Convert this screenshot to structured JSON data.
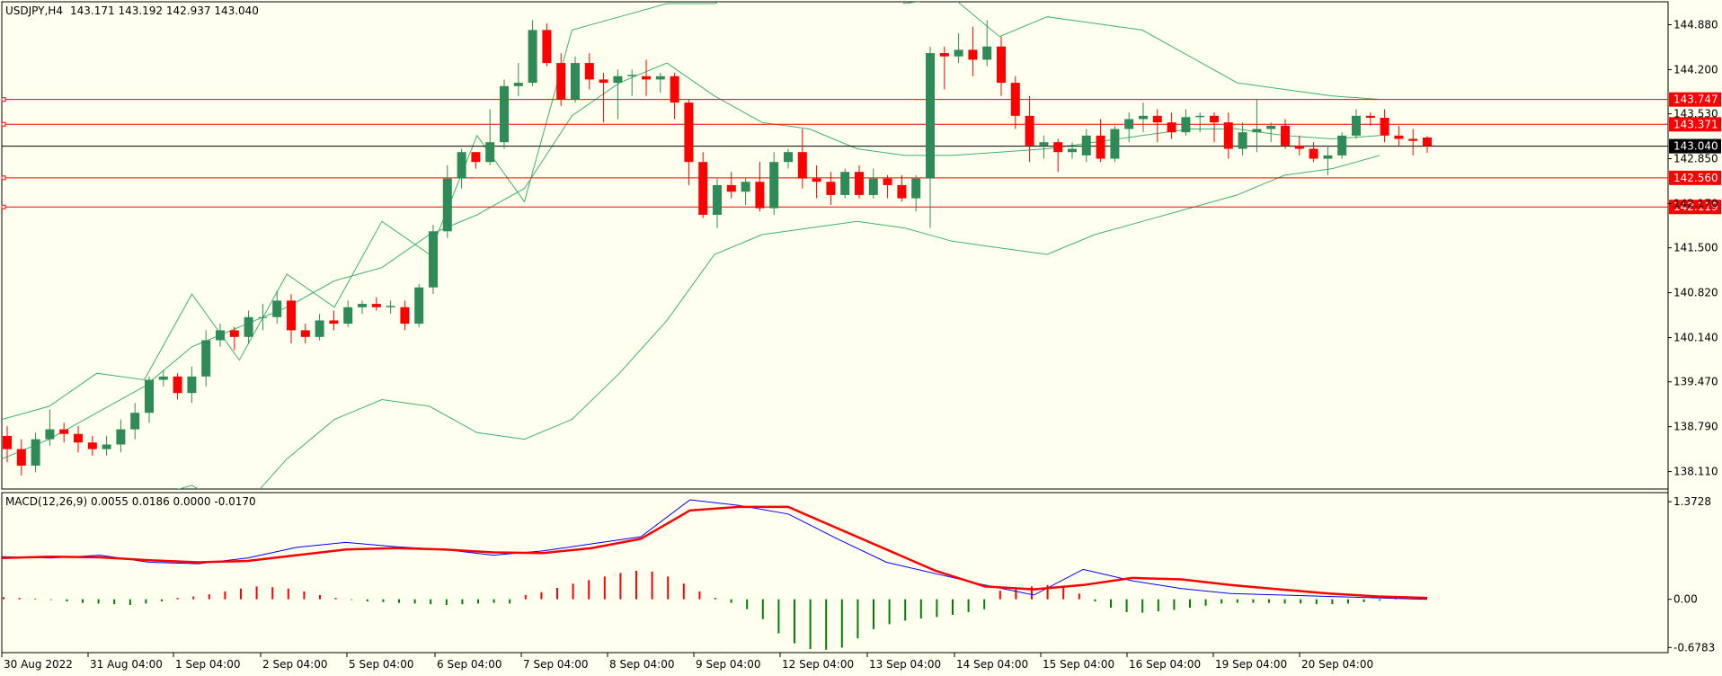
{
  "header": {
    "symbol": "USDJPY,H4",
    "ohlc": "143.171 143.192 142.937 143.040"
  },
  "colors": {
    "background": "#fffff0",
    "bull": "#2e8b57",
    "bear": "#ff0000",
    "bands": "#3cb371",
    "level_line": "#ff0000",
    "current_line": "#000000",
    "macd_line": "#0000ff",
    "signal_line": "#ff0000",
    "hist_up": "#ff0000",
    "hist_down": "#008000"
  },
  "chart_data": [
    {
      "type": "candlestick",
      "title": "USDJPY,H4",
      "ylim": [
        137.9,
        145.2
      ],
      "y_ticks": [
        "144.880",
        "144.200",
        "143.530",
        "142.850",
        "142.170",
        "141.500",
        "140.820",
        "140.140",
        "139.470",
        "138.790",
        "138.110"
      ],
      "x_ticks": [
        "30 Aug 2022",
        "31 Aug 04:00",
        "1 Sep 04:00",
        "2 Sep 04:00",
        "5 Sep 04:00",
        "6 Sep 04:00",
        "7 Sep 04:00",
        "8 Sep 04:00",
        "9 Sep 04:00",
        "12 Sep 04:00",
        "13 Sep 04:00",
        "14 Sep 04:00",
        "15 Sep 04:00",
        "16 Sep 04:00",
        "19 Sep 04:00",
        "20 Sep 04:00"
      ],
      "horizontal_levels": [
        {
          "value": 143.747,
          "label": "143.747"
        },
        {
          "value": 143.371,
          "label": "143.371"
        },
        {
          "value": 142.56,
          "label": "142.560"
        },
        {
          "value": 142.119,
          "label": "142.119"
        }
      ],
      "current_price": {
        "value": 143.04,
        "label": "143.040"
      },
      "candles": [
        [
          138.65,
          138.8,
          138.25,
          138.45
        ],
        [
          138.45,
          138.6,
          138.05,
          138.2
        ],
        [
          138.2,
          138.7,
          138.1,
          138.6
        ],
        [
          138.6,
          139.05,
          138.5,
          138.75
        ],
        [
          138.75,
          138.85,
          138.55,
          138.68
        ],
        [
          138.68,
          138.8,
          138.4,
          138.55
        ],
        [
          138.55,
          138.65,
          138.35,
          138.45
        ],
        [
          138.45,
          138.65,
          138.35,
          138.52
        ],
        [
          138.52,
          138.9,
          138.4,
          138.75
        ],
        [
          138.75,
          139.15,
          138.6,
          139.0
        ],
        [
          139.0,
          139.55,
          138.85,
          139.5
        ],
        [
          139.5,
          139.65,
          139.4,
          139.55
        ],
        [
          139.55,
          139.6,
          139.2,
          139.3
        ],
        [
          139.3,
          139.7,
          139.15,
          139.55
        ],
        [
          139.55,
          140.25,
          139.4,
          140.1
        ],
        [
          140.1,
          140.35,
          140.0,
          140.25
        ],
        [
          140.25,
          140.3,
          139.95,
          140.15
        ],
        [
          140.15,
          140.55,
          140.05,
          140.45
        ],
        [
          140.45,
          140.65,
          140.25,
          140.45
        ],
        [
          140.45,
          140.85,
          140.35,
          140.7
        ],
        [
          140.7,
          140.8,
          140.05,
          140.25
        ],
        [
          140.25,
          140.35,
          140.05,
          140.15
        ],
        [
          140.15,
          140.5,
          140.1,
          140.4
        ],
        [
          140.4,
          140.55,
          140.25,
          140.35
        ],
        [
          140.35,
          140.7,
          140.3,
          140.6
        ],
        [
          140.6,
          140.7,
          140.5,
          140.65
        ],
        [
          140.65,
          140.75,
          140.55,
          140.6
        ],
        [
          140.6,
          140.7,
          140.5,
          140.62
        ],
        [
          140.6,
          140.7,
          140.25,
          140.35
        ],
        [
          140.35,
          140.95,
          140.3,
          140.9
        ],
        [
          140.9,
          141.85,
          140.8,
          141.75
        ],
        [
          141.75,
          142.75,
          141.65,
          142.55
        ],
        [
          142.55,
          143.0,
          142.4,
          142.95
        ],
        [
          142.95,
          142.95,
          142.7,
          142.8
        ],
        [
          142.8,
          143.6,
          142.75,
          143.1
        ],
        [
          143.1,
          144.05,
          143.0,
          143.95
        ],
        [
          143.95,
          144.3,
          143.8,
          144.0
        ],
        [
          144.0,
          144.95,
          143.95,
          144.8
        ],
        [
          144.8,
          144.9,
          144.25,
          144.3
        ],
        [
          144.3,
          144.45,
          143.65,
          143.75
        ],
        [
          143.75,
          144.4,
          143.7,
          144.3
        ],
        [
          144.3,
          144.45,
          143.9,
          144.05
        ],
        [
          144.05,
          144.15,
          143.4,
          144.0
        ],
        [
          144.0,
          144.2,
          143.45,
          144.1
        ],
        [
          144.1,
          144.2,
          143.8,
          144.12
        ],
        [
          144.1,
          144.35,
          143.8,
          144.05
        ],
        [
          144.05,
          144.15,
          143.85,
          144.1
        ],
        [
          144.1,
          144.15,
          143.45,
          143.7
        ],
        [
          143.7,
          143.75,
          142.45,
          142.8
        ],
        [
          142.8,
          142.95,
          141.95,
          142.0
        ],
        [
          142.0,
          142.55,
          141.8,
          142.45
        ],
        [
          142.45,
          142.65,
          142.25,
          142.35
        ],
        [
          142.35,
          142.55,
          142.15,
          142.5
        ],
        [
          142.5,
          142.8,
          142.05,
          142.1
        ],
        [
          142.1,
          142.95,
          142.0,
          142.8
        ],
        [
          142.8,
          143.0,
          142.7,
          142.95
        ],
        [
          142.95,
          143.3,
          142.4,
          142.55
        ],
        [
          142.55,
          142.75,
          142.25,
          142.5
        ],
        [
          142.5,
          142.65,
          142.15,
          142.3
        ],
        [
          142.3,
          142.7,
          142.25,
          142.65
        ],
        [
          142.65,
          142.75,
          142.25,
          142.3
        ],
        [
          142.3,
          142.7,
          142.25,
          142.55
        ],
        [
          142.55,
          142.6,
          142.25,
          142.45
        ],
        [
          142.45,
          142.6,
          142.2,
          142.25
        ],
        [
          142.25,
          142.6,
          142.05,
          142.55
        ],
        [
          142.55,
          144.55,
          141.8,
          144.45
        ],
        [
          144.45,
          144.55,
          143.9,
          144.4
        ],
        [
          144.4,
          144.75,
          144.3,
          144.5
        ],
        [
          144.5,
          144.85,
          144.1,
          144.35
        ],
        [
          144.35,
          144.95,
          144.25,
          144.55
        ],
        [
          144.55,
          144.7,
          143.8,
          144.0
        ],
        [
          144.0,
          144.1,
          143.3,
          143.5
        ],
        [
          143.5,
          143.8,
          142.8,
          143.05
        ],
        [
          143.05,
          143.2,
          142.85,
          143.1
        ],
        [
          143.1,
          143.15,
          142.65,
          142.95
        ],
        [
          142.95,
          143.1,
          142.85,
          143.0
        ],
        [
          142.9,
          143.3,
          142.8,
          143.2
        ],
        [
          143.2,
          143.45,
          142.8,
          142.85
        ],
        [
          142.85,
          143.35,
          142.8,
          143.3
        ],
        [
          143.3,
          143.55,
          143.1,
          143.45
        ],
        [
          143.45,
          143.7,
          143.25,
          143.5
        ],
        [
          143.5,
          143.6,
          143.1,
          143.4
        ],
        [
          143.4,
          143.55,
          143.15,
          143.25
        ],
        [
          143.25,
          143.6,
          143.2,
          143.48
        ],
        [
          143.48,
          143.55,
          143.25,
          143.5
        ],
        [
          143.5,
          143.55,
          143.1,
          143.4
        ],
        [
          143.4,
          143.55,
          142.85,
          143.0
        ],
        [
          143.0,
          143.4,
          142.9,
          143.25
        ],
        [
          143.25,
          143.75,
          142.95,
          143.3
        ],
        [
          143.3,
          143.4,
          143.1,
          143.35
        ],
        [
          143.35,
          143.45,
          143.0,
          143.05
        ],
        [
          143.05,
          143.2,
          142.9,
          143.0
        ],
        [
          143.0,
          143.1,
          142.8,
          142.85
        ],
        [
          142.85,
          143.05,
          142.6,
          142.9
        ],
        [
          142.9,
          143.25,
          142.85,
          143.2
        ],
        [
          143.2,
          143.6,
          143.15,
          143.5
        ],
        [
          143.5,
          143.55,
          143.35,
          143.47
        ],
        [
          143.47,
          143.6,
          143.1,
          143.2
        ],
        [
          143.2,
          143.35,
          143.05,
          143.15
        ],
        [
          143.15,
          143.3,
          142.9,
          143.12
        ],
        [
          143.171,
          143.192,
          142.937,
          143.04
        ]
      ],
      "bollinger": {
        "upper": [
          [
            138.9,
            139.1
          ],
          [
            139.6,
            139.5
          ],
          [
            140.8,
            139.8
          ],
          [
            141.1,
            140.6
          ],
          [
            141.9,
            141.4
          ],
          [
            143.2,
            142.2
          ],
          [
            144.8,
            145.0
          ],
          [
            145.2,
            145.2
          ],
          [
            145.5,
            145.8
          ],
          [
            145.7,
            145.2
          ],
          [
            145.3,
            144.7
          ],
          [
            145.0,
            144.9
          ],
          [
            144.8,
            144.4
          ],
          [
            144.0,
            143.9
          ],
          [
            143.8,
            143.75
          ]
        ],
        "middle": [
          [
            138.3,
            138.6
          ],
          [
            139.0,
            139.4
          ],
          [
            140.0,
            140.3
          ],
          [
            140.6,
            141.0
          ],
          [
            141.2,
            141.7
          ],
          [
            142.0,
            142.4
          ],
          [
            143.5,
            144.0
          ],
          [
            144.3,
            143.8
          ],
          [
            143.4,
            143.3
          ],
          [
            143.0,
            142.9
          ],
          [
            142.9,
            142.95
          ],
          [
            143.0,
            143.1
          ],
          [
            143.2,
            143.3
          ],
          [
            143.3,
            143.2
          ],
          [
            143.15,
            143.2
          ]
        ],
        "lower": [
          [
            137.4,
            137.6
          ],
          [
            137.8,
            137.7
          ],
          [
            137.9,
            137.5
          ],
          [
            138.3,
            138.9
          ],
          [
            139.2,
            139.1
          ],
          [
            138.7,
            138.6
          ],
          [
            138.9,
            139.6
          ],
          [
            140.4,
            141.4
          ],
          [
            141.7,
            141.8
          ],
          [
            141.9,
            141.8
          ],
          [
            141.6,
            141.5
          ],
          [
            141.4,
            141.7
          ],
          [
            141.9,
            142.1
          ],
          [
            142.3,
            142.6
          ],
          [
            142.7,
            142.9
          ]
        ]
      }
    },
    {
      "type": "line+histogram",
      "title": "MACD(12,26,9) 0.0055 0.0186 0.0000 -0.0170",
      "ylim": [
        -0.7,
        1.45
      ],
      "y_ticks": [
        "1.3728",
        "0.00",
        "-0.6783"
      ],
      "series": [
        {
          "name": "MACD",
          "values": [
            0.6,
            0.58,
            0.62,
            0.52,
            0.5,
            0.58,
            0.73,
            0.8,
            0.74,
            0.7,
            0.62,
            0.68,
            0.78,
            0.88,
            1.4,
            1.32,
            1.2,
            0.85,
            0.52,
            0.36,
            0.2,
            0.06,
            0.42,
            0.26,
            0.15,
            0.08,
            0.06,
            0.04,
            0.02,
            0.0
          ]
        },
        {
          "name": "Signal",
          "values": [
            0.58,
            0.6,
            0.59,
            0.55,
            0.52,
            0.54,
            0.62,
            0.7,
            0.72,
            0.7,
            0.66,
            0.65,
            0.72,
            0.85,
            1.25,
            1.3,
            1.3,
            1.0,
            0.7,
            0.4,
            0.18,
            0.14,
            0.2,
            0.3,
            0.28,
            0.2,
            0.14,
            0.08,
            0.04,
            0.02
          ]
        },
        {
          "name": "Histogram",
          "values": [
            0.03,
            0.02,
            0.01,
            -0.01,
            -0.03,
            -0.05,
            -0.06,
            -0.07,
            -0.08,
            -0.06,
            -0.03,
            0.02,
            0.04,
            0.07,
            0.11,
            0.15,
            0.18,
            0.17,
            0.15,
            0.11,
            0.06,
            0.02,
            -0.01,
            -0.03,
            -0.04,
            -0.05,
            -0.06,
            -0.07,
            -0.08,
            -0.07,
            -0.06,
            -0.05,
            -0.06,
            0.06,
            0.1,
            0.16,
            0.22,
            0.27,
            0.32,
            0.37,
            0.4,
            0.39,
            0.32,
            0.22,
            0.11,
            0.02,
            -0.05,
            -0.14,
            -0.28,
            -0.48,
            -0.62,
            -0.7,
            -0.71,
            -0.68,
            -0.55,
            -0.42,
            -0.35,
            -0.3,
            -0.27,
            -0.25,
            -0.22,
            -0.18,
            -0.14,
            0.12,
            0.15,
            0.18,
            0.2,
            0.17,
            0.08,
            -0.03,
            -0.12,
            -0.18,
            -0.19,
            -0.17,
            -0.15,
            -0.12,
            -0.09,
            -0.06,
            -0.05,
            -0.05,
            -0.05,
            -0.06,
            -0.06,
            -0.07,
            -0.07,
            -0.06,
            -0.04,
            -0.02,
            0.01,
            0.01,
            0.0
          ]
        }
      ]
    }
  ]
}
